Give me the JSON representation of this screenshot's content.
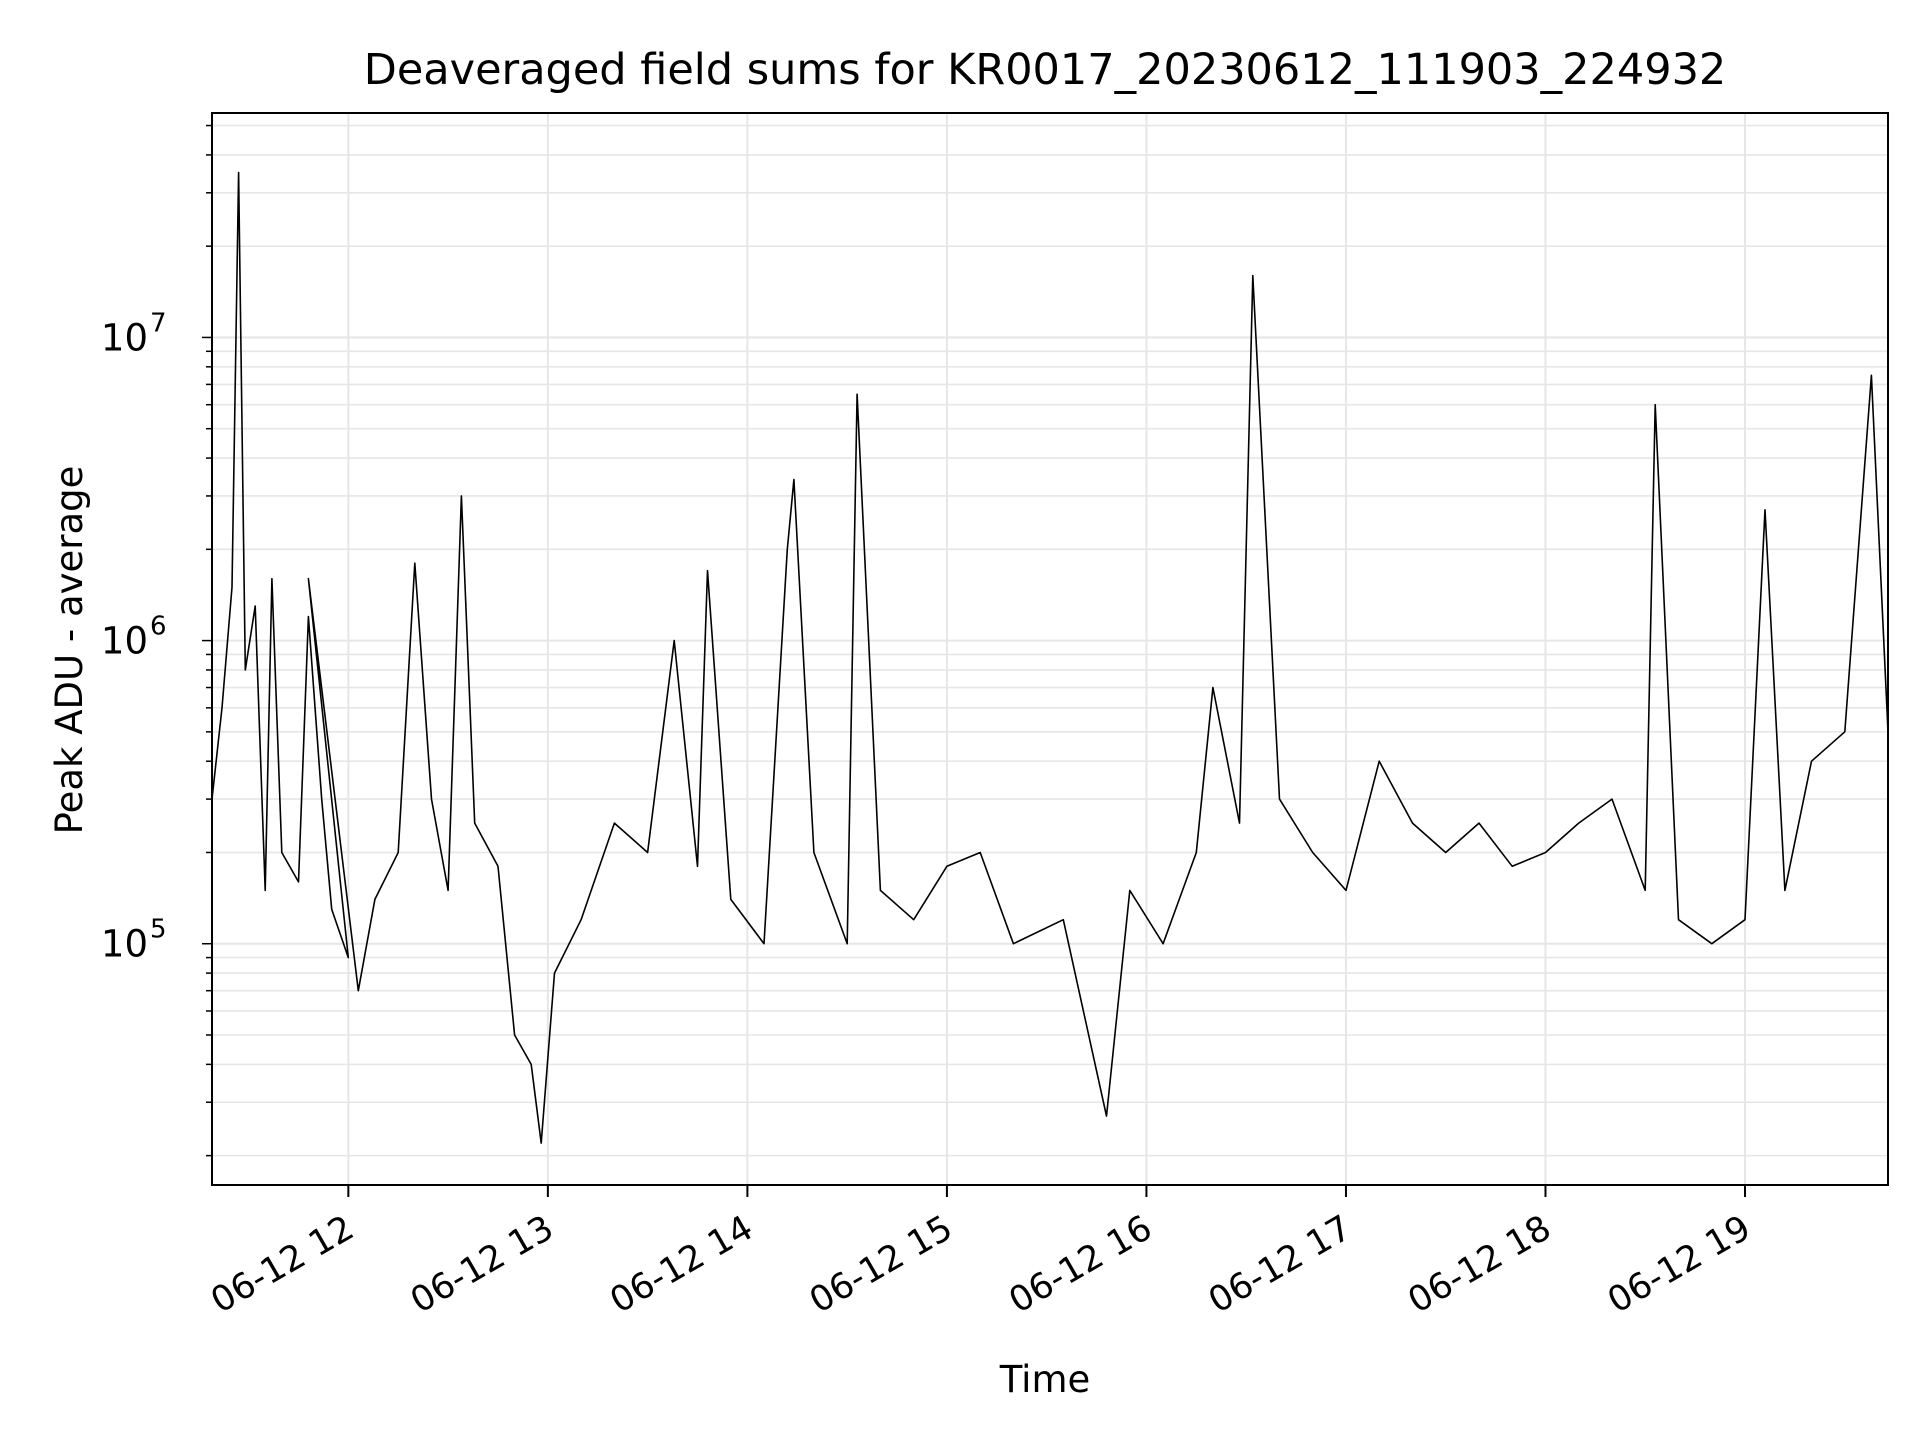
{
  "chart_data": {
    "type": "line",
    "title": "Deaveraged field sums for KR0017_20230612_111903_224932",
    "xlabel": "Time",
    "ylabel": "Peak ADU - average",
    "yscale": "log",
    "xlim": [
      "06-12 11:19",
      "06-12 19:43"
    ],
    "ylim": [
      16000,
      55000000
    ],
    "grid": true,
    "x_ticks": [
      {
        "value": "06-12 12",
        "label": "06-12 12"
      },
      {
        "value": "06-12 13",
        "label": "06-12 13"
      },
      {
        "value": "06-12 14",
        "label": "06-12 14"
      },
      {
        "value": "06-12 15",
        "label": "06-12 15"
      },
      {
        "value": "06-12 16",
        "label": "06-12 16"
      },
      {
        "value": "06-12 17",
        "label": "06-12 17"
      },
      {
        "value": "06-12 18",
        "label": "06-12 18"
      },
      {
        "value": "06-12 19",
        "label": "06-12 19"
      }
    ],
    "y_ticks": [
      {
        "value": 100000,
        "base": "10",
        "exp": "5"
      },
      {
        "value": 1000000,
        "base": "10",
        "exp": "6"
      },
      {
        "value": 10000000,
        "base": "10",
        "exp": "7"
      }
    ],
    "series": [
      {
        "color": "#000000",
        "points": [
          [
            "06-12 11:19",
            300000
          ],
          [
            "06-12 11:22",
            600000
          ],
          [
            "06-12 11:25",
            1500000
          ],
          [
            "06-12 11:27",
            35000000
          ],
          [
            "06-12 11:29",
            800000
          ],
          [
            "06-12 11:32",
            1300000
          ],
          [
            "06-12 11:35",
            150000
          ],
          [
            "06-12 11:37",
            1600000
          ],
          [
            "06-12 11:40",
            200000
          ],
          [
            "06-12 11:45",
            160000
          ],
          [
            "06-12 11:48",
            1200000
          ],
          [
            "06-12 11:52",
            300000
          ],
          [
            "06-12 11:55",
            130000
          ],
          [
            "06-12 12:00",
            90000
          ],
          [
            "06-12 11:48",
            1600000
          ],
          [
            "06-12 12:03",
            70000
          ],
          [
            "06-12 12:08",
            140000
          ],
          [
            "06-12 12:15",
            200000
          ],
          [
            "06-12 12:20",
            1800000
          ],
          [
            "06-12 12:25",
            300000
          ],
          [
            "06-12 12:30",
            150000
          ],
          [
            "06-12 12:34",
            3000000
          ],
          [
            "06-12 12:38",
            250000
          ],
          [
            "06-12 12:45",
            180000
          ],
          [
            "06-12 12:50",
            50000
          ],
          [
            "06-12 12:55",
            40000
          ],
          [
            "06-12 12:58",
            22000
          ],
          [
            "06-12 13:02",
            80000
          ],
          [
            "06-12 13:10",
            120000
          ],
          [
            "06-12 13:20",
            250000
          ],
          [
            "06-12 13:30",
            200000
          ],
          [
            "06-12 13:38",
            1000000
          ],
          [
            "06-12 13:45",
            180000
          ],
          [
            "06-12 13:48",
            1700000
          ],
          [
            "06-12 13:55",
            140000
          ],
          [
            "06-12 14:05",
            100000
          ],
          [
            "06-12 14:12",
            2000000
          ],
          [
            "06-12 14:14",
            3400000
          ],
          [
            "06-12 14:20",
            200000
          ],
          [
            "06-12 14:30",
            100000
          ],
          [
            "06-12 14:33",
            6500000
          ],
          [
            "06-12 14:40",
            150000
          ],
          [
            "06-12 14:50",
            120000
          ],
          [
            "06-12 15:00",
            180000
          ],
          [
            "06-12 15:10",
            200000
          ],
          [
            "06-12 15:20",
            100000
          ],
          [
            "06-12 15:35",
            120000
          ],
          [
            "06-12 15:48",
            27000
          ],
          [
            "06-12 15:55",
            150000
          ],
          [
            "06-12 16:05",
            100000
          ],
          [
            "06-12 16:15",
            200000
          ],
          [
            "06-12 16:20",
            700000
          ],
          [
            "06-12 16:28",
            250000
          ],
          [
            "06-12 16:32",
            16000000
          ],
          [
            "06-12 16:40",
            300000
          ],
          [
            "06-12 16:50",
            200000
          ],
          [
            "06-12 17:00",
            150000
          ],
          [
            "06-12 17:10",
            400000
          ],
          [
            "06-12 17:20",
            250000
          ],
          [
            "06-12 17:30",
            200000
          ],
          [
            "06-12 17:40",
            250000
          ],
          [
            "06-12 17:50",
            180000
          ],
          [
            "06-12 18:00",
            200000
          ],
          [
            "06-12 18:10",
            250000
          ],
          [
            "06-12 18:20",
            300000
          ],
          [
            "06-12 18:30",
            150000
          ],
          [
            "06-12 18:33",
            6000000
          ],
          [
            "06-12 18:40",
            120000
          ],
          [
            "06-12 18:50",
            100000
          ],
          [
            "06-12 19:00",
            120000
          ],
          [
            "06-12 19:06",
            2700000
          ],
          [
            "06-12 19:12",
            150000
          ],
          [
            "06-12 19:20",
            400000
          ],
          [
            "06-12 19:30",
            500000
          ],
          [
            "06-12 19:38",
            7500000
          ],
          [
            "06-12 19:43",
            500000
          ]
        ]
      }
    ]
  }
}
